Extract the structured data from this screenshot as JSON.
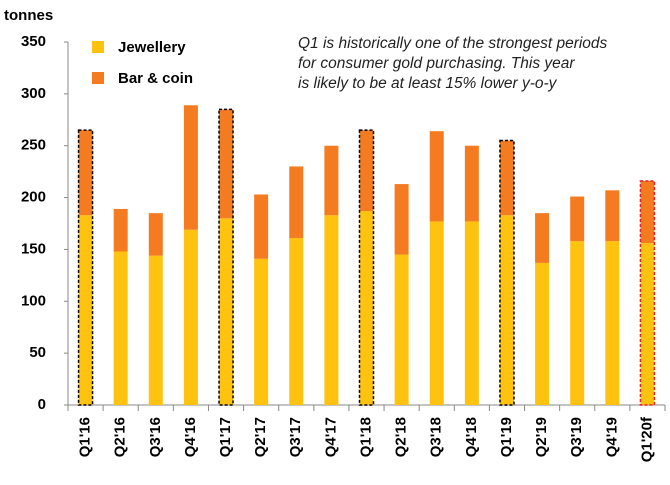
{
  "chart_data": {
    "type": "stacked_bar",
    "y_label": "tonnes",
    "annotation": [
      "Q1 is historically one of the strongest periods",
      "for consumer gold purchasing. This year",
      "is likely to be at least 15% lower y-o-y"
    ],
    "categories": [
      "Q1'16",
      "Q2'16",
      "Q3'16",
      "Q4'16",
      "Q1'17",
      "Q2'17",
      "Q3'17",
      "Q4'17",
      "Q1'18",
      "Q2'18",
      "Q3'18",
      "Q4'18",
      "Q1'19",
      "Q2'19",
      "Q3'19",
      "Q4'19",
      "Q1'20f"
    ],
    "series": [
      {
        "name": "Jewellery",
        "color": "#ffc20e",
        "values": [
          183,
          148,
          144,
          169,
          180,
          141,
          161,
          183,
          187,
          145,
          177,
          177,
          183,
          137,
          158,
          158,
          156
        ]
      },
      {
        "name": "Bar & coin",
        "color": "#f47b20",
        "values": [
          82,
          41,
          41,
          120,
          105,
          62,
          69,
          67,
          78,
          68,
          87,
          73,
          72,
          48,
          43,
          49,
          60
        ]
      }
    ],
    "outline_colors": [
      "#000000",
      null,
      null,
      null,
      "#000000",
      null,
      null,
      null,
      "#000000",
      null,
      null,
      null,
      "#000000",
      null,
      null,
      null,
      "#e0202a"
    ],
    "ylim": [
      0,
      350
    ],
    "yticks": [
      0,
      50,
      100,
      150,
      200,
      250,
      300,
      350
    ],
    "grid": false
  }
}
